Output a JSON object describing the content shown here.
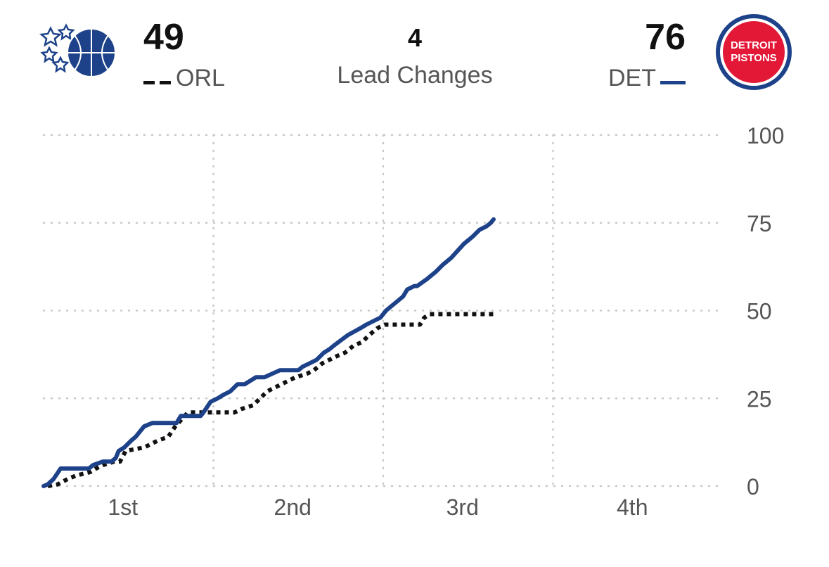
{
  "header": {
    "away": {
      "abbr": "ORL",
      "score": "49",
      "logo_icon": "orlando-magic-logo-icon"
    },
    "home": {
      "abbr": "DET",
      "score": "76",
      "logo_icon": "detroit-pistons-logo-icon",
      "logo_text_top": "DETROIT",
      "logo_text_bottom": "PISTONS"
    },
    "lead_changes": {
      "value": "4",
      "label": "Lead Changes"
    }
  },
  "colors": {
    "det": "#1d428a",
    "orl": "#111111",
    "pistons_red": "#e31837",
    "grid": "#c8c8c8"
  },
  "chart_data": {
    "type": "line",
    "title": "",
    "xlabel": "",
    "ylabel": "",
    "x_unit": "game minutes",
    "xlim": [
      0,
      48
    ],
    "ylim": [
      0,
      100
    ],
    "x_tick_labels": [
      "1st",
      "2nd",
      "3rd",
      "4th"
    ],
    "y_ticks": [
      0,
      25,
      50,
      75,
      100
    ],
    "grid": true,
    "series": [
      {
        "name": "DET",
        "style": "solid",
        "x": [
          0,
          0.3,
          0.7,
          1.2,
          2.2,
          3.2,
          3.5,
          4.2,
          4.8,
          5.1,
          5.3,
          5.7,
          6.2,
          6.5,
          7.1,
          7.7,
          9.4,
          9.7,
          10.2,
          11.1,
          11.3,
          11.8,
          12.3,
          12.7,
          13.2,
          13.7,
          14.2,
          15.0,
          15.6,
          16.7,
          17.1,
          17.4,
          18.0,
          18.3,
          18.8,
          19.3,
          19.8,
          20.2,
          20.5,
          21.5,
          22.4,
          22.8,
          23.8,
          24.2,
          25.4,
          25.7,
          26.2,
          26.4,
          27.1,
          27.4,
          27.7,
          28.2,
          28.8,
          29.7,
          30.3,
          30.8,
          31.3,
          31.6,
          31.8
        ],
        "y": [
          0,
          0.5,
          2,
          5,
          5,
          5,
          6,
          7,
          7,
          8,
          10,
          11,
          13,
          14,
          17,
          18,
          18,
          20,
          20,
          20,
          21,
          24,
          25,
          26,
          27,
          29,
          29,
          31,
          31,
          33,
          33,
          33,
          33,
          34,
          35,
          36,
          38,
          39,
          40,
          43,
          45,
          46,
          48,
          50,
          54,
          56,
          57,
          57,
          59,
          60,
          61,
          63,
          65,
          69,
          71,
          73,
          74,
          75,
          76
        ]
      },
      {
        "name": "ORL",
        "style": "dotted",
        "x": [
          0.3,
          1.0,
          1.7,
          2.3,
          3.3,
          3.7,
          4.2,
          5.0,
          5.4,
          5.8,
          7.1,
          7.6,
          8.1,
          8.8,
          9.3,
          10.2,
          13.5,
          14.0,
          14.8,
          15.3,
          15.8,
          16.3,
          16.8,
          17.3,
          17.8,
          18.6,
          19.1,
          19.7,
          20.2,
          20.7,
          21.3,
          21.9,
          22.5,
          23.0,
          23.6,
          24.1,
          26.6,
          26.9,
          27.3,
          31.8
        ],
        "y": [
          0,
          0.5,
          2,
          3,
          4,
          5,
          6,
          7,
          7,
          10,
          11,
          12,
          13,
          14,
          17,
          21,
          21,
          22,
          23,
          25,
          27,
          28,
          29,
          30,
          31,
          32,
          33,
          35,
          36,
          37,
          38,
          40,
          41,
          43,
          45,
          46,
          46,
          48,
          49,
          49
        ]
      }
    ]
  }
}
